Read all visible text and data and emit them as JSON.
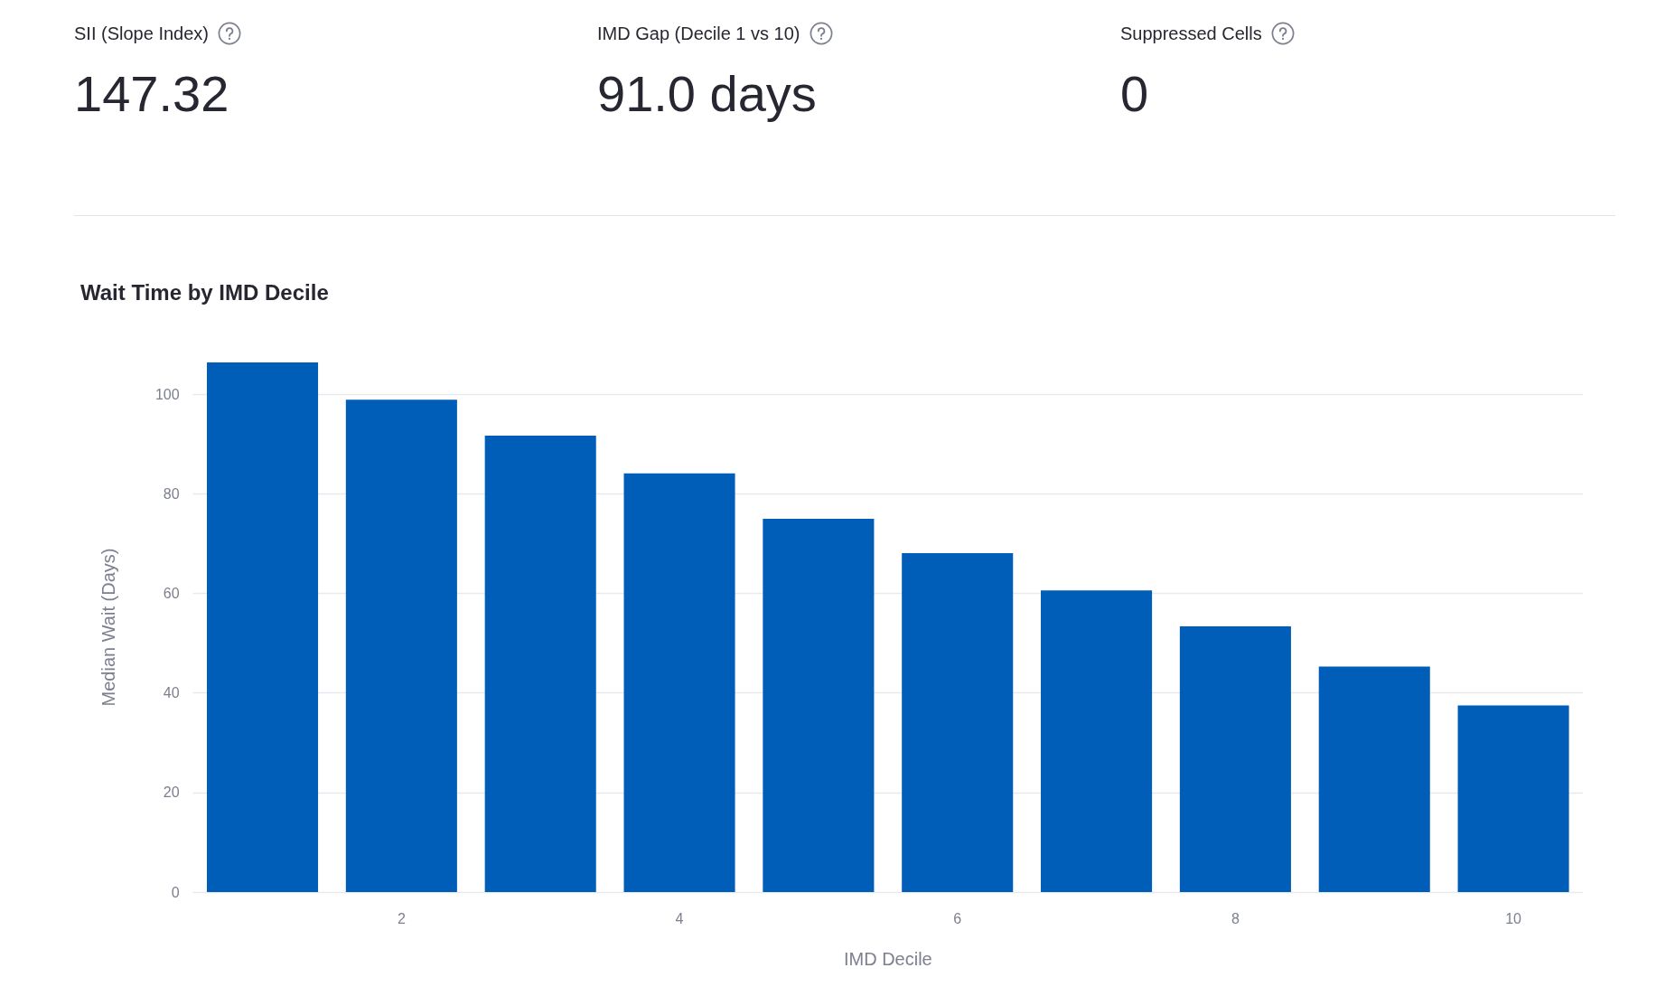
{
  "chart_data": [
    {
      "type": "other",
      "categories": [
        "SII (Slope Index)",
        "IMD Gap (Decile 1 vs 10)",
        "Suppressed Cells"
      ],
      "value_labels": [
        "147.32",
        "91.0 days",
        "0"
      ]
    },
    {
      "type": "bar",
      "title": "Wait Time by IMD Decile",
      "xlabel": "IMD Decile",
      "ylabel": "Median Wait (Days)",
      "x": [
        1,
        2,
        3,
        4,
        5,
        6,
        7,
        8,
        9,
        10
      ],
      "values": [
        106.4,
        98.9,
        91.7,
        84.1,
        75.0,
        68.1,
        60.6,
        53.4,
        45.3,
        37.5
      ],
      "color": "#005eb8",
      "xlim": [
        0.5,
        10.5
      ],
      "xticks": [
        2,
        4,
        6,
        8,
        10
      ],
      "ylim": [
        0,
        106.4
      ],
      "yticks": [
        0,
        20,
        40,
        60,
        80,
        100
      ],
      "grid": "y"
    }
  ]
}
